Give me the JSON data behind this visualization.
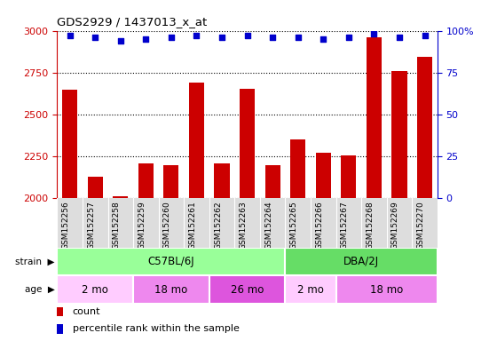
{
  "title": "GDS2929 / 1437013_x_at",
  "samples": [
    "GSM152256",
    "GSM152257",
    "GSM152258",
    "GSM152259",
    "GSM152260",
    "GSM152261",
    "GSM152262",
    "GSM152263",
    "GSM152264",
    "GSM152265",
    "GSM152266",
    "GSM152267",
    "GSM152268",
    "GSM152269",
    "GSM152270"
  ],
  "counts": [
    2645,
    2130,
    2010,
    2205,
    2195,
    2690,
    2210,
    2655,
    2195,
    2350,
    2270,
    2255,
    2960,
    2760,
    2845
  ],
  "percentile_ranks": [
    97,
    96,
    94,
    95,
    96,
    97,
    96,
    97,
    96,
    96,
    95,
    96,
    98,
    96,
    97
  ],
  "ylim_left": [
    2000,
    3000
  ],
  "ylim_right": [
    0,
    100
  ],
  "yticks_left": [
    2000,
    2250,
    2500,
    2750,
    3000
  ],
  "yticks_right": [
    0,
    25,
    50,
    75,
    100
  ],
  "bar_color": "#CC0000",
  "dot_color": "#0000CC",
  "strain_groups": [
    {
      "label": "C57BL/6J",
      "start": 0,
      "end": 9,
      "color": "#99FF99"
    },
    {
      "label": "DBA/2J",
      "start": 9,
      "end": 15,
      "color": "#66DD66"
    }
  ],
  "age_groups": [
    {
      "label": "2 mo",
      "start": 0,
      "end": 3,
      "color": "#FFCCFF"
    },
    {
      "label": "18 mo",
      "start": 3,
      "end": 6,
      "color": "#EE88EE"
    },
    {
      "label": "26 mo",
      "start": 6,
      "end": 9,
      "color": "#DD55DD"
    },
    {
      "label": "2 mo",
      "start": 9,
      "end": 11,
      "color": "#FFCCFF"
    },
    {
      "label": "18 mo",
      "start": 11,
      "end": 15,
      "color": "#EE88EE"
    }
  ],
  "strain_label": "strain",
  "age_label": "age",
  "legend_count_label": "count",
  "legend_pct_label": "percentile rank within the sample",
  "plot_bg_color": "#FFFFFF",
  "xticklabel_bg": "#DDDDDD",
  "title_color": "#000000",
  "left_axis_color": "#CC0000",
  "right_axis_color": "#0000CC"
}
